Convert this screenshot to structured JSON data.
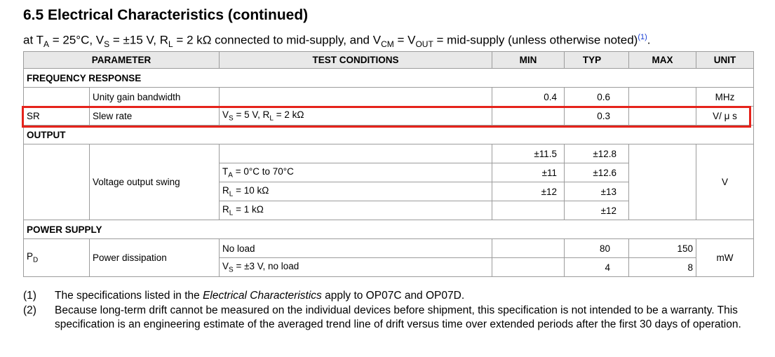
{
  "title": "6.5 Electrical Characteristics (continued)",
  "conditions": {
    "p1": "at T",
    "ta_sub": "A",
    "p2": " = 25°C, V",
    "vs_sub": "S",
    "p3": " = ±15 V, R",
    "rl_sub": "L",
    "p4": " = 2 kΩ connected to mid-supply, and V",
    "vcm_sub": "CM",
    "p5": " = V",
    "vout_sub": "OUT",
    "p6": " = mid-supply (unless otherwise noted)",
    "ref": "(1)",
    "p7": "."
  },
  "headers": {
    "parameter": "PARAMETER",
    "test_conditions": "TEST CONDITIONS",
    "min": "MIN",
    "typ": "TYP",
    "max": "MAX",
    "unit": "UNIT"
  },
  "sections": {
    "frequency": "FREQUENCY RESPONSE",
    "output": "OUTPUT",
    "power": "POWER SUPPLY"
  },
  "ugb": {
    "name": "Unity gain bandwidth",
    "min": "0.4",
    "typ": "0.6",
    "unit": "MHz"
  },
  "sr": {
    "symbol": "SR",
    "name": "Slew rate",
    "cond_v": "V",
    "cond_v_sub": "S",
    "cond_mid": " = 5 V, R",
    "cond_r_sub": "L",
    "cond_end": " = 2 kΩ",
    "typ": "0.3",
    "unit": "V/ μ s"
  },
  "vos": {
    "name": "Voltage output swing",
    "unit": "V",
    "r1": {
      "min": "±11.5",
      "typ": "±12.8"
    },
    "r2": {
      "cond_a": "T",
      "cond_sub": "A",
      "cond_b": " = 0°C to 70°C",
      "min": "±11",
      "typ": "±12.6"
    },
    "r3": {
      "cond_a": "R",
      "cond_sub": "L",
      "cond_b": " = 10 kΩ",
      "min": "±12",
      "typ": "±13"
    },
    "r4": {
      "cond_a": "R",
      "cond_sub": "L",
      "cond_b": " = 1 kΩ",
      "typ": "±12"
    }
  },
  "pd": {
    "symbol": "P",
    "symbol_sub": "D",
    "name": "Power dissipation",
    "unit": "mW",
    "r1": {
      "cond": "No load",
      "typ": "80",
      "max": "150"
    },
    "r2": {
      "cond_a": "V",
      "cond_sub": "S",
      "cond_b": " = ±3 V, no load",
      "typ": "4",
      "max": "8"
    }
  },
  "notes": [
    {
      "num": "(1)",
      "pre": "The specifications listed in the ",
      "em": "Electrical Characteristics",
      "post": " apply to OP07C and OP07D."
    },
    {
      "num": "(2)",
      "text": "Because long-term drift cannot be measured on the individual devices before shipment, this specification is not intended to be a warranty. This specification is an engineering estimate of the averaged trend line of drift versus time over extended periods after the first 30 days of operation."
    }
  ],
  "colors": {
    "highlight": "#e5231b",
    "header_bg": "#e8e8e8",
    "border": "#9c9c9c",
    "link": "#1a3fd6"
  }
}
